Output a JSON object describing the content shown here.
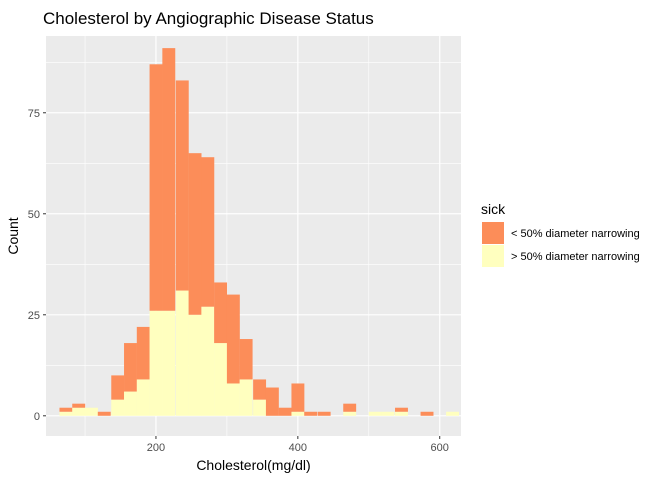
{
  "chart_data": {
    "type": "bar",
    "subtype": "stacked-histogram",
    "title": "Cholesterol by Angiographic Disease Status",
    "xlabel": "Cholesterol(mg/dl)",
    "ylabel": "Count",
    "xlim": [
      45,
      630
    ],
    "ylim": [
      -5,
      94
    ],
    "x_ticks": [
      200,
      400,
      600
    ],
    "y_ticks": [
      0,
      25,
      50,
      75
    ],
    "grid": true,
    "legend_placement": "right",
    "legend_title": "sick",
    "bin_width": 18.2,
    "bin_starts": [
      64,
      82,
      100,
      118,
      137,
      155,
      173,
      191,
      209,
      228,
      246,
      264,
      282,
      300,
      318,
      337,
      355,
      373,
      391,
      409,
      428,
      446,
      464,
      482,
      500,
      518,
      537,
      555,
      573,
      591,
      609
    ],
    "series": [
      {
        "name": "< 50% diameter narrowing",
        "color": "#FC8D59",
        "values": [
          1,
          1,
          0,
          1,
          6,
          12,
          13,
          61,
          65,
          52,
          40,
          37,
          15,
          22,
          10,
          5,
          7,
          2,
          7,
          1,
          1,
          0,
          2,
          0,
          0,
          0,
          1,
          0,
          1,
          0,
          0
        ]
      },
      {
        "name": "> 50% diameter narrowing",
        "color": "#FFFFBF",
        "values": [
          1,
          2,
          2,
          0,
          4,
          6,
          9,
          26,
          26,
          31,
          25,
          27,
          18,
          8,
          9,
          4,
          0,
          0,
          1,
          0,
          0,
          0,
          1,
          0,
          1,
          1,
          1,
          0,
          0,
          0,
          1
        ]
      }
    ]
  },
  "colors": {
    "panel_background": "#EBEBEB",
    "grid_major": "#FFFFFF",
    "tick_text": "#4D4D4D"
  }
}
